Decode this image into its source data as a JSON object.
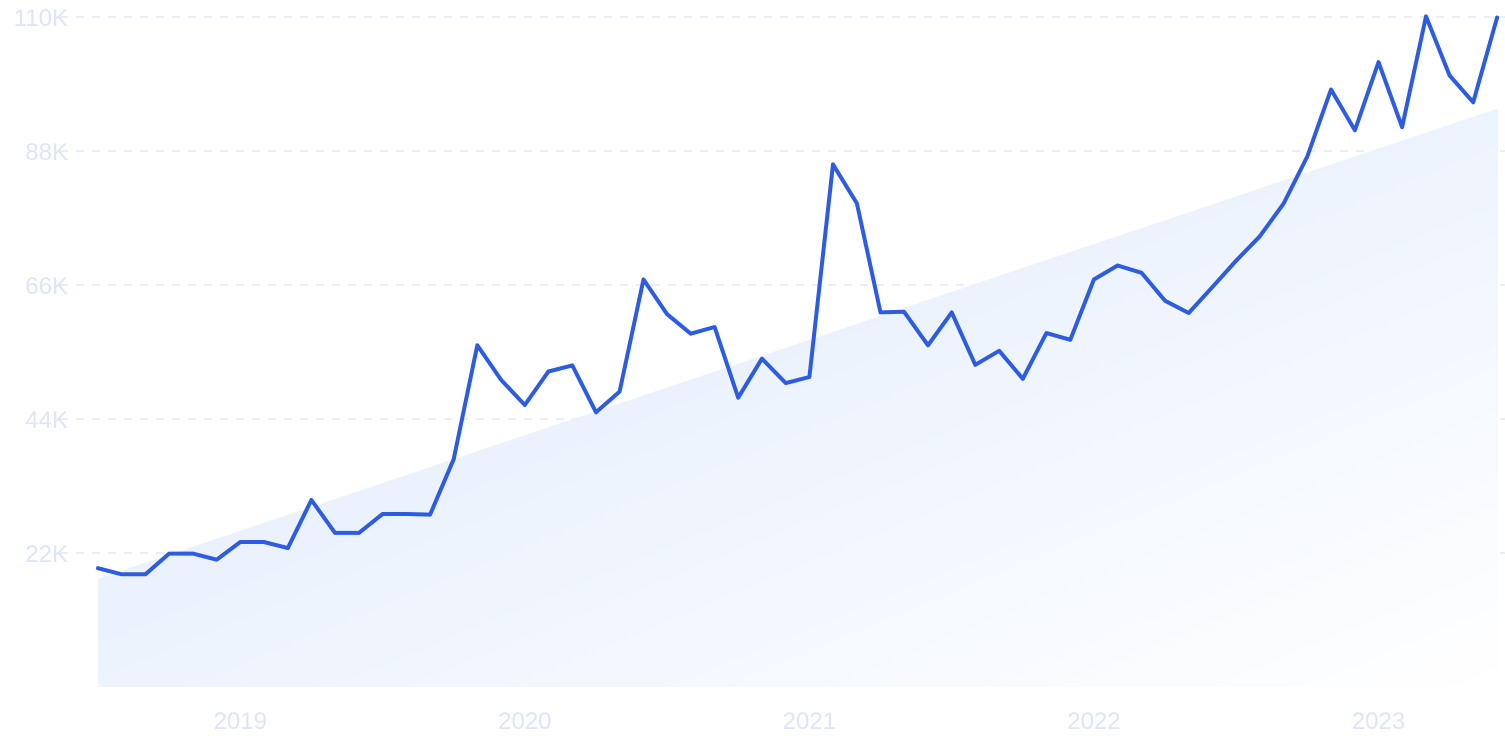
{
  "chart_data": {
    "type": "line",
    "title": "",
    "xlabel": "",
    "ylabel": "",
    "ylim": [
      0,
      110000
    ],
    "y_ticks": [
      {
        "value": 22000,
        "label": "22K"
      },
      {
        "value": 44000,
        "label": "44K"
      },
      {
        "value": 66000,
        "label": "66K"
      },
      {
        "value": 88000,
        "label": "88K"
      },
      {
        "value": 110000,
        "label": "110K"
      }
    ],
    "x_ticks": [
      {
        "value": 2019.0,
        "label": "2019"
      },
      {
        "value": 2020.0,
        "label": "2020"
      },
      {
        "value": 2021.0,
        "label": "2021"
      },
      {
        "value": 2022.0,
        "label": "2022"
      },
      {
        "value": 2023.0,
        "label": "2023"
      }
    ],
    "xlim": [
      2018.5,
      2023.42
    ],
    "grid": "horizontal dashed",
    "line_color": "#2e5ce0",
    "trend_fill_color": "#dde9fb",
    "trend": {
      "start": 17800,
      "end": 95000
    },
    "series": [
      {
        "x": [
          2018.5,
          2018.583,
          2018.667,
          2018.75,
          2018.833,
          2018.917,
          2019.0,
          2019.083,
          2019.167,
          2019.25,
          2019.333,
          2019.417,
          2019.5,
          2019.583,
          2019.667,
          2019.75,
          2019.833,
          2019.917,
          2020.0,
          2020.083,
          2020.167,
          2020.25,
          2020.333,
          2020.417,
          2020.5,
          2020.583,
          2020.667,
          2020.75,
          2020.833,
          2020.917,
          2021.0,
          2021.083,
          2021.167,
          2021.25,
          2021.333,
          2021.417,
          2021.5,
          2021.583,
          2021.667,
          2021.75,
          2021.833,
          2021.917,
          2022.0,
          2022.083,
          2022.167,
          2022.25,
          2022.333,
          2022.417,
          2022.5,
          2022.583,
          2022.667,
          2022.75,
          2022.833,
          2022.917,
          2023.0,
          2023.083,
          2023.167,
          2023.25,
          2023.333,
          2023.417
        ],
        "values": [
          19500,
          18500,
          18500,
          21900,
          21900,
          20900,
          23800,
          23800,
          22800,
          30700,
          25300,
          25300,
          28400,
          28400,
          28300,
          37400,
          56100,
          50400,
          46300,
          51800,
          52800,
          45100,
          48500,
          66900,
          61200,
          58000,
          59100,
          47500,
          53900,
          49900,
          50900,
          85800,
          79400,
          61500,
          61600,
          56100,
          61500,
          52900,
          55200,
          50600,
          58100,
          57000,
          66900,
          69200,
          68000,
          63400,
          61400,
          65700,
          70000,
          74000,
          79400,
          87100,
          98100,
          91400,
          102600,
          91900,
          110100,
          100400,
          96000,
          109900
        ]
      }
    ]
  }
}
